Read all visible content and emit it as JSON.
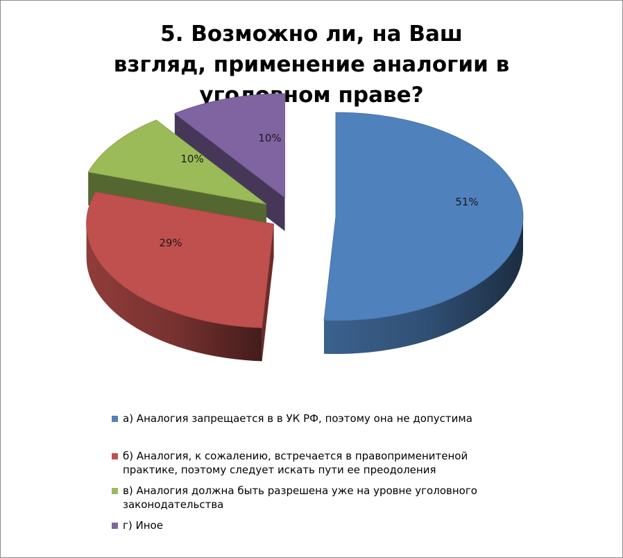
{
  "title_lines": [
    "5. Возможно ли, на Ваш",
    "взгляд, применение аналогии в",
    "уголовном праве?"
  ],
  "chart_data": {
    "type": "pie",
    "title": "5. Возможно ли, на Ваш взгляд, применение аналогии в уголовном праве?",
    "categories": [
      "а) Аналогия запрещается в в УК РФ, поэтому она не допустима",
      "б) Аналогия, к сожалению, встречается в правоприменитеной практике, поэтому следует искать пути ее преодоления",
      "в) Аналогия должна быть разрешена уже на уровне уголовного законодательства",
      "г) Иное"
    ],
    "values": [
      51,
      29,
      10,
      10
    ],
    "data_labels": [
      "51%",
      "29%",
      "10%",
      "10%"
    ],
    "colors": [
      "#4F81BD",
      "#C0504D",
      "#9BBB59",
      "#8064A2"
    ],
    "exploded": true,
    "style": "3d",
    "legend_position": "bottom"
  },
  "legend": [
    {
      "lines": [
        "а) Аналогия запрещается в в УК РФ, поэтому она не допустима"
      ]
    },
    {
      "lines": [
        "б) Аналогия, к сожалению, встречается в правоприменитеной",
        "практике, поэтому следует искать пути ее преодоления"
      ]
    },
    {
      "lines": [
        "в) Аналогия должна быть разрешена уже на уровне уголовного",
        "законодательства"
      ]
    },
    {
      "lines": [
        "г) Иное"
      ]
    }
  ]
}
